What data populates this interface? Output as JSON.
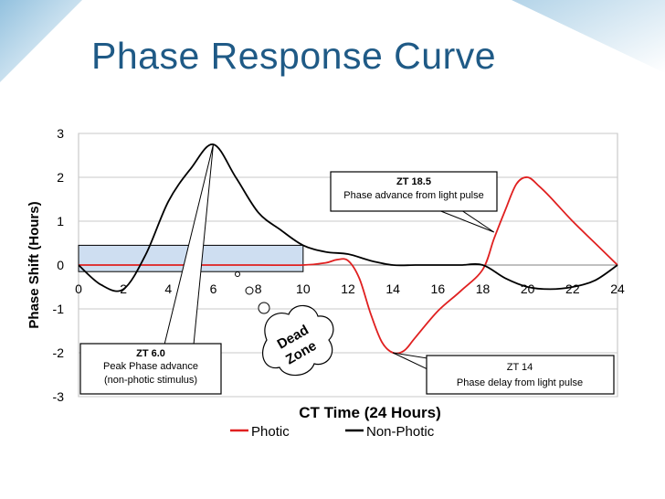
{
  "slide": {
    "title": "Phase Response Curve"
  },
  "chart_data": {
    "type": "line",
    "xlabel": "CT Time (24 Hours)",
    "ylabel": "Phase Shift (Hours)",
    "xlim": [
      0,
      24
    ],
    "ylim": [
      -3,
      3
    ],
    "x_ticks": [
      "0",
      "2",
      "4",
      "6",
      "8",
      "10",
      "12",
      "14",
      "16",
      "18",
      "20",
      "22",
      "24"
    ],
    "y_ticks": [
      "3",
      "2",
      "1",
      "0",
      "-1",
      "-2",
      "-3"
    ],
    "grid": "horizontal",
    "legend_position": "bottom",
    "series": [
      {
        "name": "Photic",
        "color": "#e02020",
        "x": [
          0,
          2,
          4,
          6,
          8,
          10,
          11,
          11.5,
          12,
          12.5,
          13,
          13.5,
          14,
          14.5,
          15,
          16,
          17,
          18,
          18.5,
          19,
          19.5,
          20,
          20.5,
          21,
          22,
          23,
          24
        ],
        "y": [
          0,
          0,
          0,
          0,
          0,
          0,
          0.05,
          0.12,
          0.1,
          -0.3,
          -1.1,
          -1.75,
          -2.0,
          -1.95,
          -1.65,
          -1.05,
          -0.6,
          -0.1,
          0.6,
          1.25,
          1.85,
          2.0,
          1.8,
          1.55,
          1.0,
          0.5,
          0
        ]
      },
      {
        "name": "Non-Photic",
        "color": "#000000",
        "x": [
          0,
          1,
          2,
          3,
          4,
          5,
          6,
          7,
          8,
          9,
          10,
          11,
          12,
          13,
          14,
          15,
          16,
          17,
          18,
          19,
          20,
          21,
          22,
          23,
          24
        ],
        "y": [
          0,
          -0.45,
          -0.55,
          0.25,
          1.45,
          2.2,
          2.75,
          2.0,
          1.2,
          0.8,
          0.45,
          0.3,
          0.25,
          0.1,
          0,
          0,
          0,
          0,
          0,
          -0.3,
          -0.5,
          -0.55,
          -0.5,
          -0.35,
          0
        ]
      }
    ],
    "annotations": [
      {
        "title": "ZT 18.5",
        "text": "Phase advance from light pulse",
        "target_x": 18.5,
        "target_y": 0.75
      },
      {
        "title": "ZT 6.0",
        "text": "Peak Phase advance",
        "text2": "(non-photic stimulus)",
        "target_x": 6,
        "target_y": 2.75
      },
      {
        "title": "ZT 14",
        "text": "Phase delay from light pulse",
        "target_x": 14,
        "target_y": -2.0
      }
    ],
    "dead_zone": {
      "label_line1": "Dead",
      "label_line2": "Zone",
      "x_range": [
        0,
        10
      ],
      "y_range": [
        -0.15,
        0.45
      ]
    }
  }
}
